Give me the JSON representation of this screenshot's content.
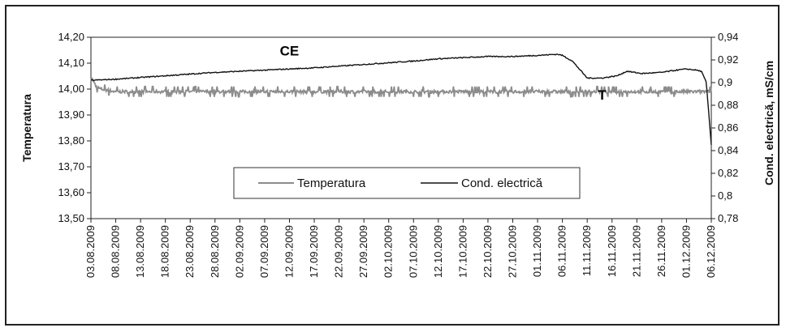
{
  "chart_data": {
    "type": "line",
    "xlabel": "",
    "ylabel_left": "Temperatura",
    "ylabel_right": "Cond. electrică, mS/cm",
    "y_left": {
      "min": 13.5,
      "max": 14.2,
      "ticks": [
        "14,20",
        "14,10",
        "14,00",
        "13,90",
        "13,80",
        "13,70",
        "13,60",
        "13,50"
      ]
    },
    "y_right": {
      "min": 0.78,
      "max": 0.94,
      "ticks": [
        "0,94",
        "0,92",
        "0,9",
        "0,88",
        "0,86",
        "0,84",
        "0,82",
        "0,8",
        "0,78"
      ]
    },
    "x_ticks": [
      "03.08.2009",
      "08.08.2009",
      "13.08.2009",
      "18.08.2009",
      "23.08.2009",
      "28.08.2009",
      "02.09.2009",
      "07.09.2009",
      "12.09.2009",
      "17.09.2009",
      "22.09.2009",
      "27.09.2009",
      "02.10.2009",
      "07.10.2009",
      "12.10.2009",
      "17.10.2009",
      "22.10.2009",
      "27.10.2009",
      "01.11.2009",
      "06.11.2009",
      "11.11.2009",
      "16.11.2009",
      "21.11.2009",
      "26.11.2009",
      "01.12.2009",
      "06.12.2009"
    ],
    "grid": false,
    "legend_position": "bottom-center",
    "legend": [
      "Temperatura",
      "Cond. electrică"
    ],
    "annotations": [
      {
        "text": "CE",
        "day": 40,
        "value": 14.13,
        "axis": "left"
      },
      {
        "text": "T",
        "day": 103,
        "value": 13.96,
        "axis": "left"
      }
    ],
    "series": [
      {
        "name": "Temperatura",
        "axis": "left",
        "color": "#8c8c8c",
        "baseline": 13.99,
        "points_day": [
          0,
          1,
          2,
          5,
          10,
          20,
          30,
          40,
          50,
          60,
          70,
          80,
          90,
          100,
          110,
          115,
          120,
          125,
          126
        ],
        "points_value": [
          14.05,
          14.01,
          14.0,
          13.99,
          13.99,
          13.99,
          13.99,
          13.99,
          13.99,
          13.99,
          13.99,
          13.99,
          13.99,
          13.99,
          13.99,
          13.99,
          13.99,
          13.99,
          13.99
        ]
      },
      {
        "name": "Cond. electrică",
        "axis": "right",
        "color": "#111111",
        "points_day": [
          0,
          5,
          15,
          25,
          35,
          45,
          55,
          65,
          70,
          75,
          80,
          85,
          90,
          94,
          95,
          97,
          99,
          100,
          103,
          106,
          108,
          111,
          115,
          118,
          120,
          122,
          123,
          124,
          125,
          126
        ],
        "points_value": [
          0.902,
          0.903,
          0.906,
          0.909,
          0.911,
          0.913,
          0.916,
          0.919,
          0.921,
          0.922,
          0.923,
          0.923,
          0.924,
          0.925,
          0.924,
          0.919,
          0.909,
          0.904,
          0.904,
          0.906,
          0.91,
          0.908,
          0.909,
          0.911,
          0.912,
          0.911,
          0.91,
          0.9,
          0.845,
          0.844
        ]
      }
    ]
  }
}
